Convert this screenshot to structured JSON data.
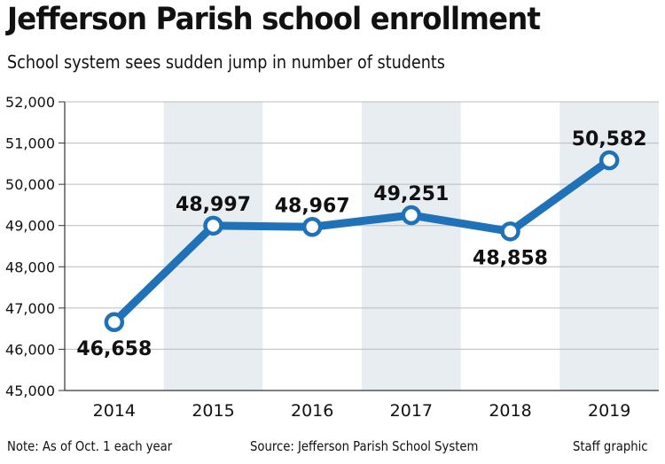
{
  "header": {
    "title": "Jefferson Parish school enrollment",
    "subtitle": "School system sees sudden jump in number of students"
  },
  "footer": {
    "note": "Note: As of Oct. 1 each year",
    "source": "Source: Jefferson Parish School System",
    "credit": "Staff graphic"
  },
  "colors": {
    "line": "#1f72b8",
    "band": "#e8edf1",
    "text": "#111111",
    "axis": "#333333"
  },
  "chart_data": {
    "type": "line",
    "categories": [
      "2014",
      "2015",
      "2016",
      "2017",
      "2018",
      "2019"
    ],
    "values": [
      46658,
      48997,
      48967,
      49251,
      48858,
      50582
    ],
    "value_labels": [
      "46,658",
      "48,997",
      "48,967",
      "49,251",
      "48,858",
      "50,582"
    ],
    "yticks": [
      45000,
      46000,
      47000,
      48000,
      49000,
      50000,
      51000,
      52000
    ],
    "ytick_labels": [
      "45,000",
      "46,000",
      "47,000",
      "48,000",
      "49,000",
      "50,000",
      "51,000",
      "52,000"
    ],
    "ylim": [
      45000,
      52000
    ],
    "label_position": [
      "below",
      "above",
      "above",
      "above",
      "below",
      "above"
    ],
    "shaded_columns": [
      1,
      3,
      5
    ],
    "grid": true,
    "legend": false,
    "markers": "open-circle"
  }
}
